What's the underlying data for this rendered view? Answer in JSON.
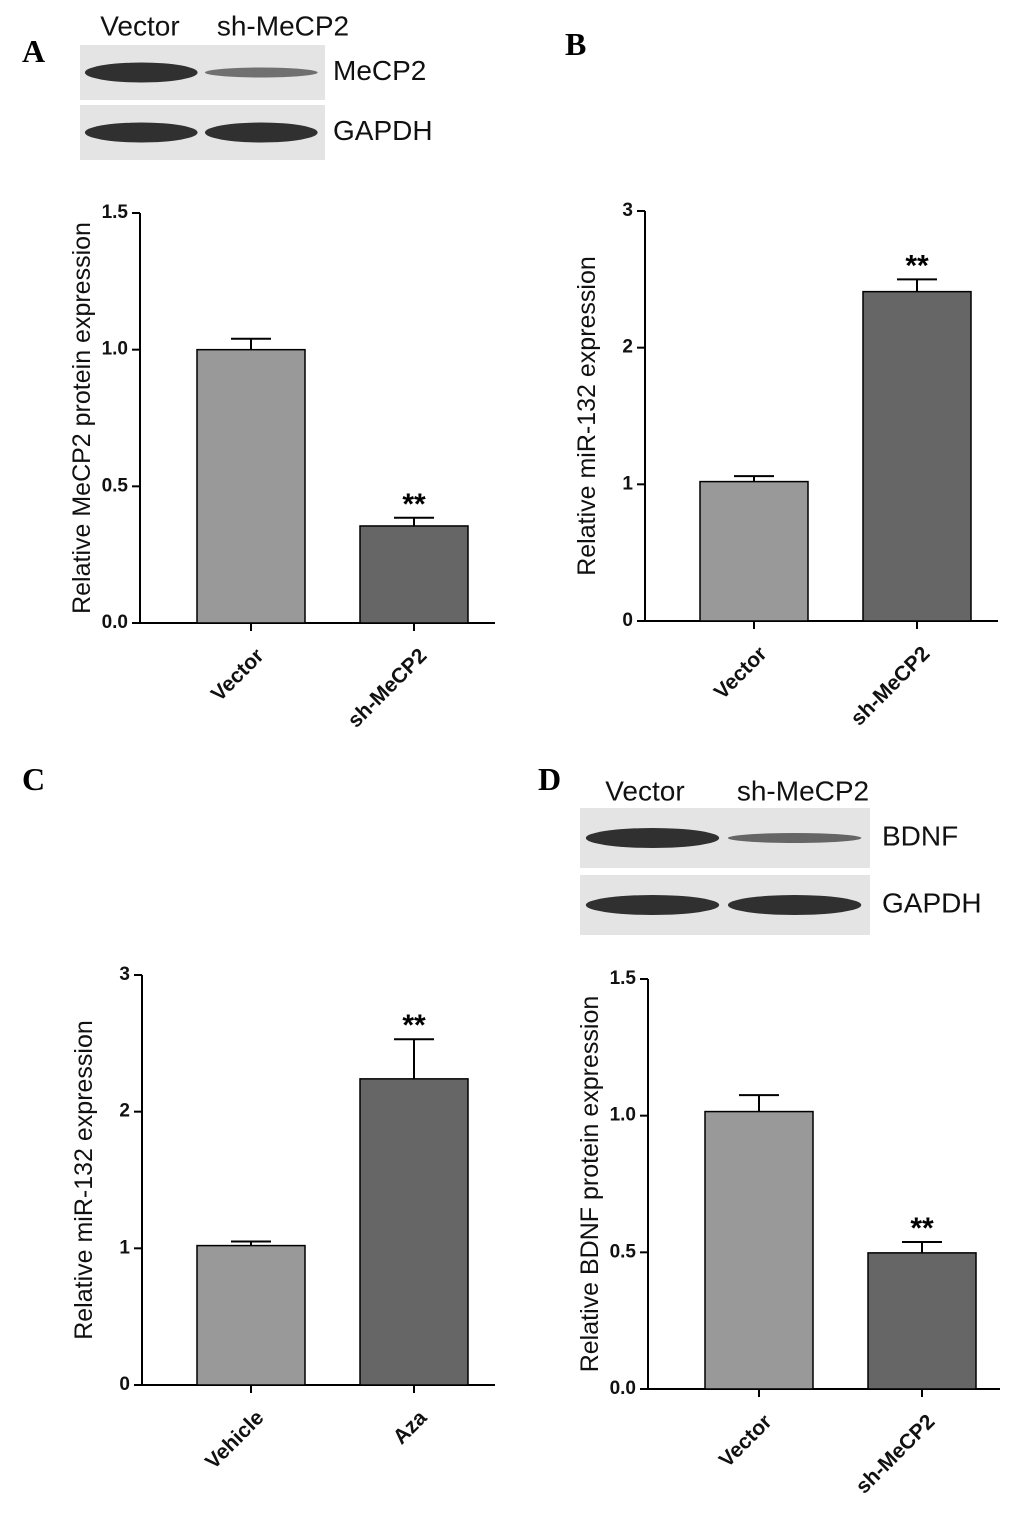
{
  "chart_data": [
    {
      "type": "bar",
      "panel": "A",
      "ylabel": "Relative MeCP2 protein expression",
      "blot": {
        "lanes": [
          "Vector",
          "sh-MeCP2"
        ],
        "bands": [
          "MeCP2",
          "GAPDH"
        ]
      },
      "categories": [
        "Vector",
        "sh-MeCP2"
      ],
      "values": [
        1.0,
        0.355
      ],
      "errors": [
        0.04,
        0.03
      ],
      "annotations": [
        null,
        "**"
      ],
      "colors": [
        "#999999",
        "#666666"
      ],
      "ylim": [
        0,
        1.5
      ],
      "yticks": [
        {
          "value": 0,
          "label": "0.0"
        },
        0.5,
        {
          "value": 1,
          "label": "1.0"
        },
        1.5
      ]
    },
    {
      "type": "bar",
      "panel": "B",
      "ylabel": "Relative miR-132 expression",
      "categories": [
        "Vector",
        "sh-MeCP2"
      ],
      "values": [
        1.02,
        2.41
      ],
      "errors": [
        0.04,
        0.09
      ],
      "annotations": [
        null,
        "**"
      ],
      "colors": [
        "#999999",
        "#666666"
      ],
      "ylim": [
        0,
        3
      ],
      "yticks": [
        0,
        1,
        2,
        3
      ]
    },
    {
      "type": "bar",
      "panel": "C",
      "ylabel": "Relative miR-132 expression",
      "categories": [
        "Vehicle",
        "Aza"
      ],
      "values": [
        1.02,
        2.24
      ],
      "errors": [
        0.03,
        0.29
      ],
      "annotations": [
        null,
        "**"
      ],
      "colors": [
        "#999999",
        "#666666"
      ],
      "ylim": [
        0,
        3
      ],
      "yticks": [
        0,
        1,
        2,
        3
      ]
    },
    {
      "type": "bar",
      "panel": "D",
      "ylabel": "Relative BDNF protein expression",
      "blot": {
        "lanes": [
          "Vector",
          "sh-MeCP2"
        ],
        "bands": [
          "BDNF",
          "GAPDH"
        ]
      },
      "categories": [
        "Vector",
        "sh-MeCP2"
      ],
      "values": [
        1.015,
        0.498
      ],
      "errors": [
        0.06,
        0.04
      ],
      "annotations": [
        null,
        "**"
      ],
      "colors": [
        "#999999",
        "#666666"
      ],
      "ylim": [
        0,
        1.5
      ],
      "yticks": [
        {
          "value": 0,
          "label": "0.0"
        },
        0.5,
        {
          "value": 1,
          "label": "1.0"
        },
        1.5
      ]
    }
  ]
}
